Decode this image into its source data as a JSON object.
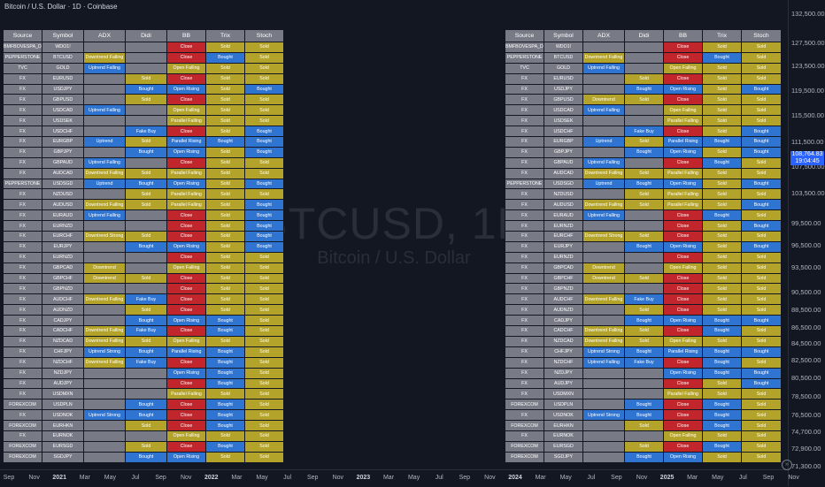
{
  "header": {
    "title": "Bitcoin / U.S. Dollar · 1D · Coinbase"
  },
  "watermark": {
    "symbol": "BTCUSD, 1D",
    "name": "Bitcoin / U.S. Dollar"
  },
  "price_axis": {
    "ticks": [
      "132,500.00",
      "127,500.00",
      "123,500.00",
      "119,500.00",
      "115,500.00",
      "111,500.00",
      "107,500.00",
      "103,500.00",
      "99,500.00",
      "96,500.00",
      "93,500.00",
      "90,500.00",
      "88,500.00",
      "86,500.00",
      "84,500.00",
      "82,500.00",
      "80,500.00",
      "78,500.00",
      "76,500.00",
      "74,700.00",
      "72,900.00",
      "71,300.00"
    ],
    "current_price": "108,764.83",
    "countdown": "19:04:45"
  },
  "time_axis": {
    "ticks": [
      {
        "label": "Sep",
        "year": false
      },
      {
        "label": "Nov",
        "year": false
      },
      {
        "label": "2021",
        "year": true
      },
      {
        "label": "Mar",
        "year": false
      },
      {
        "label": "May",
        "year": false
      },
      {
        "label": "Jul",
        "year": false
      },
      {
        "label": "Sep",
        "year": false
      },
      {
        "label": "Nov",
        "year": false
      },
      {
        "label": "2022",
        "year": true
      },
      {
        "label": "Mar",
        "year": false
      },
      {
        "label": "May",
        "year": false
      },
      {
        "label": "Jul",
        "year": false
      },
      {
        "label": "Sep",
        "year": false
      },
      {
        "label": "Nov",
        "year": false
      },
      {
        "label": "2023",
        "year": true
      },
      {
        "label": "Mar",
        "year": false
      },
      {
        "label": "May",
        "year": false
      },
      {
        "label": "Jul",
        "year": false
      },
      {
        "label": "Sep",
        "year": false
      },
      {
        "label": "Nov",
        "year": false
      },
      {
        "label": "2024",
        "year": true
      },
      {
        "label": "Mar",
        "year": false
      },
      {
        "label": "May",
        "year": false
      },
      {
        "label": "Jul",
        "year": false
      },
      {
        "label": "Sep",
        "year": false
      },
      {
        "label": "Nov",
        "year": false
      },
      {
        "label": "2025",
        "year": true
      },
      {
        "label": "Mar",
        "year": false
      },
      {
        "label": "May",
        "year": false
      },
      {
        "label": "Jul",
        "year": false
      },
      {
        "label": "Sep",
        "year": false
      },
      {
        "label": "Nov",
        "year": false
      }
    ]
  },
  "colors": {
    "sold": "#b4a32a",
    "bought": "#2f74d0",
    "close": "#c0262c",
    "neutral": "#787b86",
    "background": "#131722",
    "accent": "#2962ff"
  },
  "table_headers": [
    "Source",
    "Symbol",
    "ADX",
    "Didi",
    "BB",
    "Trix",
    "Stoch"
  ],
  "left_table": [
    [
      "BMFBOVESPA_DLY",
      "WDO1!",
      "",
      "",
      "Close",
      "Sold",
      "Sold"
    ],
    [
      "PEPPERSTONE",
      "BTCUSD",
      "Downtrend Falling",
      "",
      "Close",
      "Bought",
      "Sold"
    ],
    [
      "TVC",
      "GOLD",
      "Uptrend Falling",
      "",
      "Open Falling",
      "Sold",
      "Sold"
    ],
    [
      "FX",
      "EURUSD",
      "",
      "Sold",
      "Close",
      "Sold",
      "Sold"
    ],
    [
      "FX",
      "USDJPY",
      "",
      "Bought",
      "Open Rising",
      "Sold",
      "Bought"
    ],
    [
      "FX",
      "GBPUSD",
      "",
      "Sold",
      "Close",
      "Sold",
      "Sold"
    ],
    [
      "FX",
      "USDCAD",
      "Uptrend Falling",
      "",
      "Open Falling",
      "Sold",
      "Sold"
    ],
    [
      "FX",
      "USDSEK",
      "",
      "",
      "Parallel Falling",
      "Sold",
      "Sold"
    ],
    [
      "FX",
      "USDCHF",
      "",
      "Fake Buy",
      "Close",
      "Sold",
      "Bought"
    ],
    [
      "FX",
      "EURGBP",
      "Uptrend",
      "Sold",
      "Parallel Rising",
      "Bought",
      "Bought"
    ],
    [
      "FX",
      "GBPJPY",
      "",
      "Bought",
      "Open Rising",
      "Sold",
      "Bought"
    ],
    [
      "FX",
      "GBPAUD",
      "Uptrend Falling",
      "",
      "Close",
      "Sold",
      "Sold"
    ],
    [
      "FX",
      "AUDCAD",
      "Downtrend Falling",
      "Sold",
      "Parallel Falling",
      "Sold",
      "Sold"
    ],
    [
      "PEPPERSTONE",
      "USDSGD",
      "Uptrend",
      "Bought",
      "Open Rising",
      "Sold",
      "Bought"
    ],
    [
      "FX",
      "NZDUSD",
      "",
      "Sold",
      "Parallel Falling",
      "Sold",
      "Sold"
    ],
    [
      "FX",
      "AUDUSD",
      "Downtrend Falling",
      "Sold",
      "Parallel Falling",
      "Sold",
      "Bought"
    ],
    [
      "FX",
      "EURAUD",
      "Uptrend Falling",
      "",
      "Close",
      "Sold",
      "Bought"
    ],
    [
      "FX",
      "EURNZD",
      "",
      "",
      "Close",
      "Sold",
      "Bought"
    ],
    [
      "FX",
      "EURCHF",
      "Downtrend Strong",
      "Sold",
      "Close",
      "Sold",
      "Bought"
    ],
    [
      "FX",
      "EURJPY",
      "",
      "Bought",
      "Open Rising",
      "Sold",
      "Bought"
    ],
    [
      "FX",
      "EURNZD",
      "",
      "",
      "Close",
      "Sold",
      "Sold"
    ],
    [
      "FX",
      "GBPCAD",
      "Downtrend",
      "",
      "Open Falling",
      "Sold",
      "Sold"
    ],
    [
      "FX",
      "GBPCHF",
      "Downtrend",
      "Sold",
      "Close",
      "Sold",
      "Sold"
    ],
    [
      "FX",
      "GBPNZD",
      "",
      "",
      "Close",
      "Sold",
      "Sold"
    ],
    [
      "FX",
      "AUDCHF",
      "Downtrend Falling",
      "Fake Buy",
      "Close",
      "Sold",
      "Sold"
    ],
    [
      "FX",
      "AUDNZD",
      "",
      "Sold",
      "Close",
      "Sold",
      "Sold"
    ],
    [
      "FX",
      "CADJPY",
      "",
      "Bought",
      "Open Rising",
      "Bought",
      "Sold"
    ],
    [
      "FX",
      "CADCHF",
      "Downtrend Falling",
      "Fake Buy",
      "Close",
      "Bought",
      "Sold"
    ],
    [
      "FX",
      "NZDCAD",
      "Downtrend Falling",
      "Sold",
      "Open Falling",
      "Sold",
      "Sold"
    ],
    [
      "FX",
      "CHFJPY",
      "Uptrend Strong",
      "Bought",
      "Parallel Rising",
      "Bought",
      "Sold"
    ],
    [
      "FX",
      "NZDCHF",
      "Downtrend Falling",
      "Fake Buy",
      "Close",
      "Bought",
      "Sold"
    ],
    [
      "FX",
      "NZDJPY",
      "",
      "",
      "Open Rising",
      "Bought",
      "Sold"
    ],
    [
      "FX",
      "AUDJPY",
      "",
      "",
      "Close",
      "Bought",
      "Sold"
    ],
    [
      "FX",
      "USDMXN",
      "",
      "",
      "Parallel Falling",
      "Sold",
      "Sold"
    ],
    [
      "FOREXCOM",
      "USDPLN",
      "",
      "Bought",
      "Close",
      "Bought",
      "Sold"
    ],
    [
      "FX",
      "USDNOK",
      "Uptrend Strong",
      "Bought",
      "Close",
      "Bought",
      "Sold"
    ],
    [
      "FOREXCOM",
      "EURHKN",
      "",
      "Sold",
      "Close",
      "Bought",
      "Sold"
    ],
    [
      "FX",
      "EURNOK",
      "",
      "",
      "Open Falling",
      "Sold",
      "Sold"
    ],
    [
      "FOREXCOM",
      "EURSGD",
      "",
      "Sold",
      "Close",
      "Bought",
      "Sold"
    ],
    [
      "FOREXCOM",
      "SGDJPY",
      "",
      "Bought",
      "Open Rising",
      "Sold",
      "Sold"
    ]
  ],
  "right_table": [
    [
      "BMFBOVESPA_DLY",
      "WDO1!",
      "",
      "",
      "Close",
      "Sold",
      "Sold"
    ],
    [
      "PEPPERSTONE",
      "BTCUSD",
      "Downtrend Falling",
      "",
      "Close",
      "Bought",
      "Sold"
    ],
    [
      "TVC",
      "GOLD",
      "Uptrend Falling",
      "",
      "Open Falling",
      "Sold",
      "Sold"
    ],
    [
      "FX",
      "EURUSD",
      "",
      "Sold",
      "Close",
      "Sold",
      "Sold"
    ],
    [
      "FX",
      "USDJPY",
      "",
      "Bought",
      "Open Rising",
      "Sold",
      "Bought"
    ],
    [
      "FX",
      "GBPUSD",
      "Downtrend",
      "Sold",
      "Close",
      "Sold",
      "Sold"
    ],
    [
      "FX",
      "USDCAD",
      "Uptrend Falling",
      "",
      "Open Falling",
      "Sold",
      "Sold"
    ],
    [
      "FX",
      "USDSEK",
      "",
      "",
      "Parallel Falling",
      "Sold",
      "Sold"
    ],
    [
      "FX",
      "USDCHF",
      "",
      "Fake Buy",
      "Close",
      "Sold",
      "Bought"
    ],
    [
      "FX",
      "EURGBP",
      "Uptrend",
      "Sold",
      "Parallel Rising",
      "Bought",
      "Bought"
    ],
    [
      "FX",
      "GBPJPY",
      "",
      "Bought",
      "Open Rising",
      "Sold",
      "Bought"
    ],
    [
      "FX",
      "GBPAUD",
      "Uptrend Falling",
      "",
      "Close",
      "Bought",
      "Sold"
    ],
    [
      "FX",
      "AUDCAD",
      "Downtrend Falling",
      "Sold",
      "Parallel Falling",
      "Sold",
      "Sold"
    ],
    [
      "PEPPERSTONE",
      "USDSGD",
      "Uptrend",
      "Bought",
      "Open Rising",
      "Sold",
      "Bought"
    ],
    [
      "FX",
      "NZDUSD",
      "",
      "Sold",
      "Parallel Falling",
      "Sold",
      "Sold"
    ],
    [
      "FX",
      "AUDUSD",
      "Downtrend Falling",
      "Sold",
      "Parallel Falling",
      "Sold",
      "Bought"
    ],
    [
      "FX",
      "EURAUD",
      "Uptrend Falling",
      "",
      "Close",
      "Bought",
      "Sold"
    ],
    [
      "FX",
      "EURNZD",
      "",
      "",
      "Close",
      "Sold",
      "Bought"
    ],
    [
      "FX",
      "EURCHF",
      "Downtrend Strong",
      "Sold",
      "Close",
      "Sold",
      "Sold"
    ],
    [
      "FX",
      "EURJPY",
      "",
      "Bought",
      "Open Rising",
      "Sold",
      "Bought"
    ],
    [
      "FX",
      "EURNZD",
      "",
      "",
      "Close",
      "Sold",
      "Sold"
    ],
    [
      "FX",
      "GBPCAD",
      "Downtrend",
      "",
      "Open Falling",
      "Sold",
      "Sold"
    ],
    [
      "FX",
      "GBPCHF",
      "Downtrend",
      "Sold",
      "Close",
      "Sold",
      "Sold"
    ],
    [
      "FX",
      "GBPNZD",
      "",
      "",
      "Close",
      "Sold",
      "Sold"
    ],
    [
      "FX",
      "AUDCHF",
      "Downtrend Falling",
      "Fake Buy",
      "Close",
      "Sold",
      "Sold"
    ],
    [
      "FX",
      "AUDNZD",
      "",
      "Sold",
      "Close",
      "Sold",
      "Sold"
    ],
    [
      "FX",
      "CADJPY",
      "",
      "Bought",
      "Open Rising",
      "Bought",
      "Bought"
    ],
    [
      "FX",
      "CADCHF",
      "Downtrend Falling",
      "Sold",
      "Close",
      "Bought",
      "Sold"
    ],
    [
      "FX",
      "NZDCAD",
      "Downtrend Falling",
      "Sold",
      "Open Falling",
      "Sold",
      "Sold"
    ],
    [
      "FX",
      "CHFJPY",
      "Uptrend Strong",
      "Bought",
      "Parallel Rising",
      "Bought",
      "Bought"
    ],
    [
      "FX",
      "NZDCHF",
      "Uptrend Falling",
      "Fake Buy",
      "Close",
      "Bought",
      "Sold"
    ],
    [
      "FX",
      "NZDJPY",
      "",
      "",
      "Open Rising",
      "Bought",
      "Bought"
    ],
    [
      "FX",
      "AUDJPY",
      "",
      "",
      "Close",
      "Sold",
      "Bought"
    ],
    [
      "FX",
      "USDMXN",
      "",
      "",
      "Parallel Falling",
      "Sold",
      "Sold"
    ],
    [
      "FOREXCOM",
      "USDPLN",
      "",
      "Bought",
      "Close",
      "Bought",
      "Sold"
    ],
    [
      "FX",
      "USDNOK",
      "Uptrend Strong",
      "Bought",
      "Close",
      "Bought",
      "Sold"
    ],
    [
      "FOREXCOM",
      "EURHKN",
      "",
      "Sold",
      "Close",
      "Bought",
      "Sold"
    ],
    [
      "FX",
      "EURNOK",
      "",
      "",
      "Open Falling",
      "Sold",
      "Sold"
    ],
    [
      "FOREXCOM",
      "EURSGD",
      "",
      "Sold",
      "Close",
      "Bought",
      "Sold"
    ],
    [
      "FOREXCOM",
      "SGDJPY",
      "",
      "Bought",
      "Open Rising",
      "Sold",
      "Sold"
    ]
  ]
}
